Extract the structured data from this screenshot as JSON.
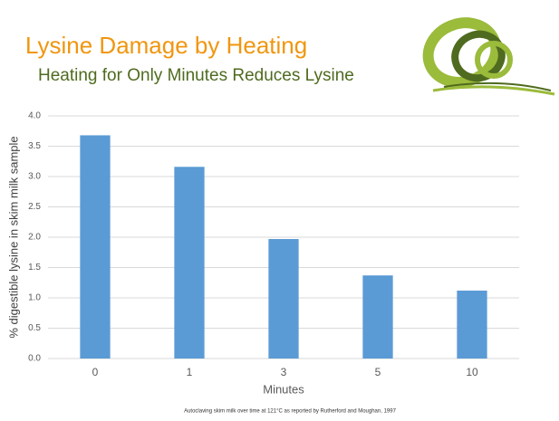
{
  "chart_data": {
    "type": "bar",
    "title": "Lysine Damage by Heating",
    "subtitle": "Heating for Only Minutes Reduces Lysine",
    "y_label": "% digestible lysine in skim milk sample",
    "x_label": "Minutes",
    "footnote": "Autoclaving skim milk over time at 121°C as reported by Rutherford and Moughan, 1997",
    "categories": [
      "0",
      "1",
      "3",
      "5",
      "10"
    ],
    "values": [
      3.68,
      3.16,
      1.97,
      1.37,
      1.12
    ],
    "color": "#5b9bd5",
    "ylim": [
      0,
      4
    ],
    "yticks": [
      {
        "value": 0,
        "label": "0.0"
      },
      0.5,
      {
        "value": 1,
        "label": "1.0"
      },
      1.5,
      {
        "value": 2,
        "label": "2.0"
      },
      2.5,
      {
        "value": 3,
        "label": "3.0"
      },
      3.5,
      {
        "value": 4,
        "label": "4.0"
      }
    ],
    "grid": true
  }
}
